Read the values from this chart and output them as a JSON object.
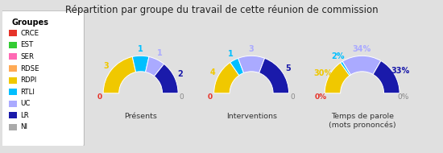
{
  "title": "Répartition par groupe du travail de cette réunion de commission",
  "background_color": "#e0e0e0",
  "legend_title": "Groupes",
  "groups": [
    "CRCE",
    "EST",
    "SER",
    "RDSE",
    "RDPI",
    "RTLI",
    "UC",
    "LR",
    "NI"
  ],
  "group_colors": [
    "#e63329",
    "#33cc33",
    "#ff69b4",
    "#ffaa55",
    "#f0c800",
    "#00bfff",
    "#aaaaff",
    "#1a1aaa",
    "#aaaaaa"
  ],
  "charts": [
    {
      "title": "Présents",
      "values": [
        0,
        0,
        0,
        0,
        3,
        1,
        1,
        2,
        0
      ],
      "labels": [
        "0",
        "",
        "",
        "",
        "3",
        "1",
        "1",
        "2",
        "0"
      ],
      "label_colors": [
        "#e63329",
        null,
        null,
        null,
        "#f0c800",
        "#00bfff",
        "#aaaaff",
        "#1a1aaa",
        "#888888"
      ],
      "is_percent": false
    },
    {
      "title": "Interventions",
      "values": [
        0,
        0,
        0,
        0,
        4,
        1,
        3,
        5,
        0
      ],
      "labels": [
        "0",
        "",
        "",
        "",
        "4",
        "1",
        "3",
        "5",
        "0"
      ],
      "label_colors": [
        "#e63329",
        null,
        null,
        null,
        "#f0c800",
        "#00bfff",
        "#aaaaff",
        "#1a1aaa",
        "#888888"
      ],
      "is_percent": false
    },
    {
      "title": "Temps de parole\n(mots prononcés)",
      "values": [
        0,
        0,
        0,
        0,
        30,
        2,
        34,
        33,
        0
      ],
      "labels": [
        "0%",
        "",
        "",
        "",
        "30%",
        "2%",
        "34%",
        "33%",
        "0%"
      ],
      "label_colors": [
        "#e63329",
        null,
        null,
        null,
        "#f0c800",
        "#00bfff",
        "#aaaaff",
        "#1a1aaa",
        "#888888"
      ],
      "is_percent": true
    }
  ],
  "figsize": [
    5.5,
    1.9
  ],
  "dpi": 100
}
